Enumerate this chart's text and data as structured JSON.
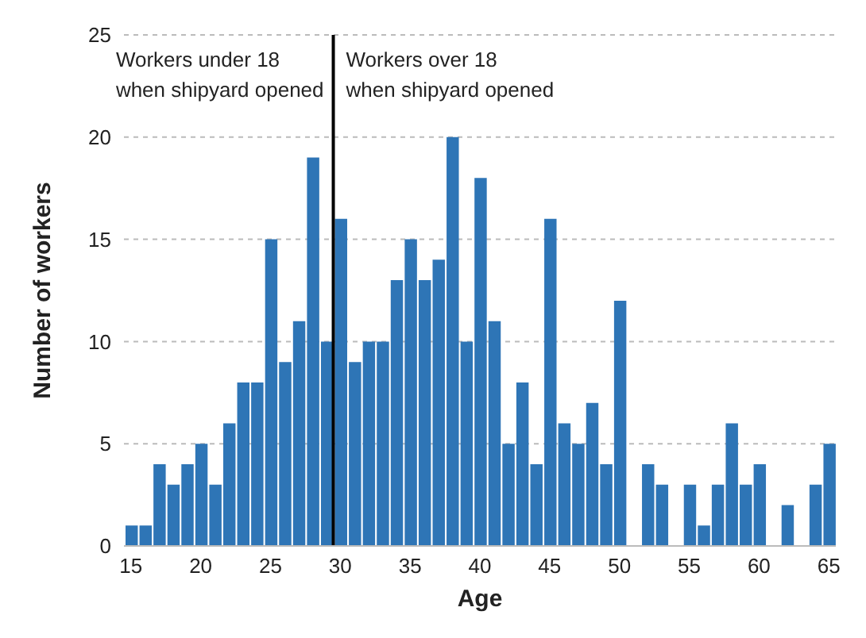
{
  "chart_data": {
    "type": "bar",
    "xlabel": "Age",
    "ylabel": "Number of workers",
    "x": [
      15,
      16,
      17,
      18,
      19,
      20,
      21,
      22,
      23,
      24,
      25,
      26,
      27,
      28,
      29,
      30,
      31,
      32,
      33,
      34,
      35,
      36,
      37,
      38,
      39,
      40,
      41,
      42,
      43,
      44,
      45,
      46,
      47,
      48,
      49,
      50,
      51,
      52,
      53,
      54,
      55,
      56,
      57,
      58,
      59,
      60,
      61,
      62,
      63,
      64,
      65
    ],
    "values": [
      1,
      1,
      4,
      3,
      4,
      5,
      3,
      6,
      8,
      8,
      15,
      9,
      11,
      19,
      10,
      16,
      9,
      10,
      10,
      13,
      15,
      13,
      14,
      20,
      10,
      18,
      11,
      5,
      8,
      4,
      16,
      6,
      5,
      7,
      4,
      12,
      0,
      4,
      3,
      0,
      3,
      1,
      3,
      6,
      3,
      4,
      0,
      2,
      0,
      3,
      5
    ],
    "color": "#2e75b6",
    "xlim": [
      14.5,
      65.5
    ],
    "xticks": [
      15,
      20,
      25,
      30,
      35,
      40,
      45,
      50,
      55,
      60,
      65
    ],
    "ylim": [
      0,
      25
    ],
    "yticks": [
      0,
      5,
      10,
      15,
      20,
      25
    ],
    "grid": "y",
    "ref_lines": [
      {
        "axis": "x",
        "value": 29.5,
        "color": "#000000"
      }
    ],
    "annotations": [
      "Workers under 18\nwhen shipyard opened",
      "Workers over 18\nwhen shipyard opened"
    ]
  }
}
